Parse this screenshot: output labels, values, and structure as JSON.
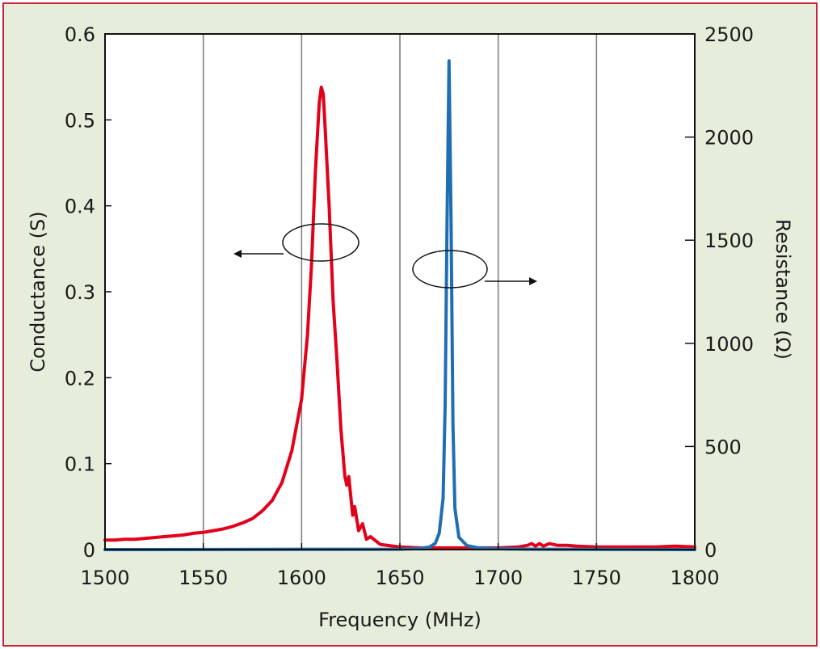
{
  "chart_data": {
    "type": "line",
    "xlabel": "Frequency (MHz)",
    "ylabel_left": "Conductance (S)",
    "ylabel_right": "Resistance (Ω)",
    "xlim": [
      1500,
      1800
    ],
    "ylim_left": [
      0,
      0.6
    ],
    "ylim_right": [
      0,
      2500
    ],
    "x_ticks": [
      "1500",
      "1550",
      "1600",
      "1650",
      "1700",
      "1750",
      "1800"
    ],
    "y_left_ticks": [
      "0",
      "0.1",
      "0.2",
      "0.3",
      "0.4",
      "0.5",
      "0.6"
    ],
    "y_right_ticks": [
      "0",
      "500",
      "1000",
      "1500",
      "2000",
      "2500"
    ],
    "grid": "vertical",
    "series": [
      {
        "axis": "left",
        "color": "#e2001a",
        "points": [
          [
            1500,
            0.011
          ],
          [
            1505,
            0.011
          ],
          [
            1510,
            0.012
          ],
          [
            1515,
            0.012
          ],
          [
            1520,
            0.013
          ],
          [
            1525,
            0.014
          ],
          [
            1530,
            0.015
          ],
          [
            1535,
            0.016
          ],
          [
            1540,
            0.017
          ],
          [
            1545,
            0.019
          ],
          [
            1550,
            0.02
          ],
          [
            1555,
            0.022
          ],
          [
            1560,
            0.024
          ],
          [
            1565,
            0.027
          ],
          [
            1570,
            0.031
          ],
          [
            1575,
            0.036
          ],
          [
            1580,
            0.045
          ],
          [
            1585,
            0.057
          ],
          [
            1590,
            0.078
          ],
          [
            1595,
            0.115
          ],
          [
            1600,
            0.175
          ],
          [
            1603,
            0.25
          ],
          [
            1605,
            0.33
          ],
          [
            1607,
            0.44
          ],
          [
            1609,
            0.52
          ],
          [
            1610,
            0.538
          ],
          [
            1611,
            0.53
          ],
          [
            1612,
            0.49
          ],
          [
            1614,
            0.4
          ],
          [
            1616,
            0.29
          ],
          [
            1618,
            0.22
          ],
          [
            1620,
            0.14
          ],
          [
            1622,
            0.085
          ],
          [
            1623,
            0.075
          ],
          [
            1624,
            0.085
          ],
          [
            1626,
            0.04
          ],
          [
            1627,
            0.05
          ],
          [
            1629,
            0.022
          ],
          [
            1631,
            0.03
          ],
          [
            1633,
            0.012
          ],
          [
            1635,
            0.015
          ],
          [
            1640,
            0.006
          ],
          [
            1650,
            0.003
          ],
          [
            1660,
            0.002
          ],
          [
            1680,
            0.002
          ],
          [
            1700,
            0.002
          ],
          [
            1710,
            0.003
          ],
          [
            1715,
            0.005
          ],
          [
            1717,
            0.007
          ],
          [
            1719,
            0.004
          ],
          [
            1721,
            0.007
          ],
          [
            1723,
            0.004
          ],
          [
            1726,
            0.007
          ],
          [
            1730,
            0.005
          ],
          [
            1735,
            0.005
          ],
          [
            1740,
            0.004
          ],
          [
            1750,
            0.003
          ],
          [
            1760,
            0.003
          ],
          [
            1770,
            0.003
          ],
          [
            1780,
            0.003
          ],
          [
            1790,
            0.004
          ],
          [
            1800,
            0.003
          ]
        ]
      },
      {
        "axis": "right",
        "color": "#1f6eb4",
        "points": [
          [
            1500,
            0
          ],
          [
            1650,
            2
          ],
          [
            1660,
            5
          ],
          [
            1665,
            12
          ],
          [
            1668,
            30
          ],
          [
            1670,
            80
          ],
          [
            1672,
            250
          ],
          [
            1673,
            700
          ],
          [
            1674,
            1600
          ],
          [
            1675,
            2370
          ],
          [
            1676,
            1600
          ],
          [
            1677,
            600
          ],
          [
            1678,
            200
          ],
          [
            1680,
            60
          ],
          [
            1684,
            20
          ],
          [
            1690,
            8
          ],
          [
            1700,
            4
          ],
          [
            1720,
            2
          ],
          [
            1800,
            0
          ]
        ]
      }
    ]
  }
}
